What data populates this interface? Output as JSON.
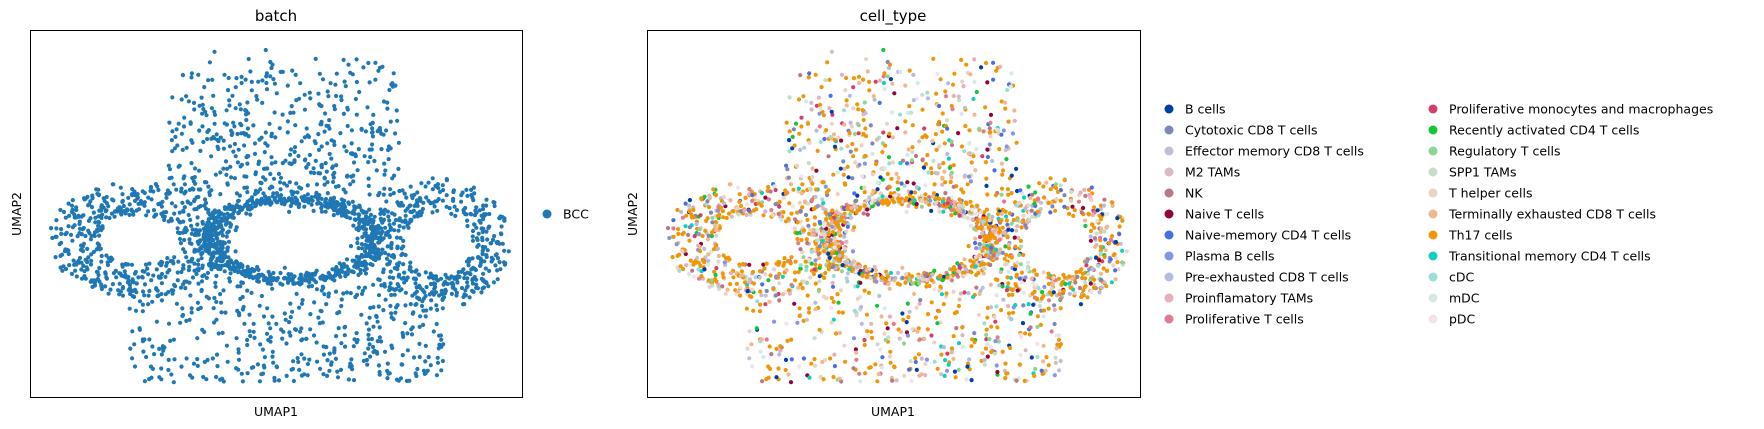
{
  "chart_data": [
    {
      "type": "scatter",
      "title": "batch",
      "xlabel": "UMAP1",
      "ylabel": "UMAP2",
      "grid": false,
      "ticks": false,
      "legend_placement": "right",
      "series": [
        {
          "name": "BCC",
          "color": "#1f77b4"
        }
      ]
    },
    {
      "type": "scatter",
      "title": "cell_type",
      "xlabel": "UMAP1",
      "ylabel": "UMAP2",
      "grid": false,
      "ticks": false,
      "legend_placement": "right",
      "series": [
        {
          "name": "B cells",
          "color": "#023fa5"
        },
        {
          "name": "Cytotoxic CD8 T cells",
          "color": "#7d87b9"
        },
        {
          "name": "Effector memory CD8 T cells",
          "color": "#bec1d4"
        },
        {
          "name": "M2 TAMs",
          "color": "#d6bcc0"
        },
        {
          "name": "NK",
          "color": "#bb7784"
        },
        {
          "name": "Naive T cells",
          "color": "#8e063b"
        },
        {
          "name": "Naive-memory CD4 T cells",
          "color": "#4a6fe3"
        },
        {
          "name": "Plasma B cells",
          "color": "#8595e1"
        },
        {
          "name": "Pre-exhausted CD8 T cells",
          "color": "#b5bbe3"
        },
        {
          "name": "Proinflamatory TAMs",
          "color": "#e6afb9"
        },
        {
          "name": "Proliferative T cells",
          "color": "#e07b91"
        },
        {
          "name": "Proliferative monocytes and macrophages",
          "color": "#d33f6a"
        },
        {
          "name": "Recently activated CD4 T cells",
          "color": "#11c638"
        },
        {
          "name": "Regulatory T cells",
          "color": "#8dd593"
        },
        {
          "name": "SPP1 TAMs",
          "color": "#c6dec7"
        },
        {
          "name": "T helper cells",
          "color": "#ead3c6"
        },
        {
          "name": "Terminally exhausted CD8 T cells",
          "color": "#f0b98d"
        },
        {
          "name": "Th17 cells",
          "color": "#ef9708"
        },
        {
          "name": "Transitional memory CD4 T cells",
          "color": "#0fcfc0"
        },
        {
          "name": "cDC",
          "color": "#9cded6"
        },
        {
          "name": "mDC",
          "color": "#d5eae7"
        },
        {
          "name": "pDC",
          "color": "#f3e1eb"
        }
      ]
    }
  ]
}
